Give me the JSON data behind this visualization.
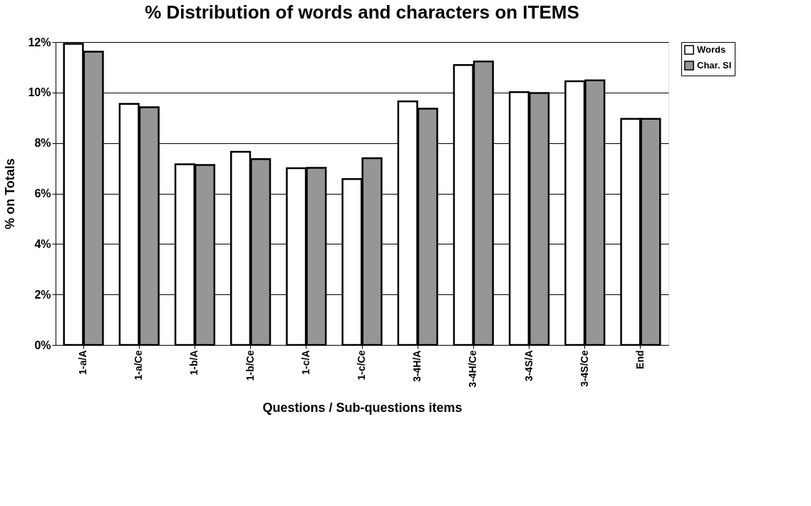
{
  "chart_data": {
    "type": "bar",
    "title": "% Distribution of words and characters on ITEMS",
    "xlabel": "Questions / Sub-questions items",
    "ylabel": "% on Totals",
    "categories": [
      "1-a/A",
      "1-a/Ce",
      "1-b/A",
      "1-b/Ce",
      "1-c/A",
      "1-c/Ce",
      "3-4H/A",
      "3-4H/Ce",
      "3-4S/A",
      "3-4S/Ce",
      "End"
    ],
    "series": [
      {
        "name": "Words",
        "color": "#ffffff",
        "values": [
          11.93,
          9.55,
          7.16,
          7.65,
          7.0,
          6.57,
          9.65,
          11.09,
          10.02,
          10.45,
          8.96
        ]
      },
      {
        "name": "Char. SI",
        "color": "#969696",
        "values": [
          11.62,
          9.42,
          7.13,
          7.36,
          7.02,
          7.4,
          9.36,
          11.23,
          9.98,
          10.48,
          8.96
        ]
      }
    ],
    "ylim": [
      0,
      12
    ],
    "yticks": [
      {
        "value": 0,
        "label": "0%"
      },
      {
        "value": 2,
        "label": "2%"
      },
      {
        "value": 4,
        "label": "4%"
      },
      {
        "value": 6,
        "label": "6%"
      },
      {
        "value": 8,
        "label": "8%"
      },
      {
        "value": 10,
        "label": "10%"
      },
      {
        "value": 12,
        "label": "12%"
      }
    ],
    "grid": "y",
    "legend": "right"
  }
}
